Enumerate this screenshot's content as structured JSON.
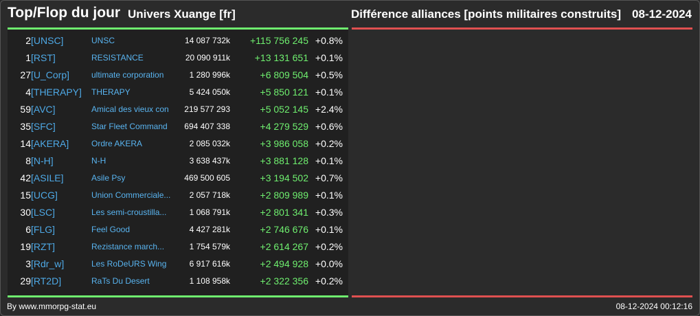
{
  "header": {
    "title": "Top/Flop du jour",
    "universe": "Univers Xuange [fr]",
    "subject": "Différence alliances [points militaires construits]",
    "date": "08-12-2024"
  },
  "colors": {
    "accent_top": "#6fef6f",
    "accent_flop": "#e05050",
    "tag": "#4ea9e6"
  },
  "rows": [
    {
      "rank": "2",
      "tag": "[UNSC]",
      "name": "UNSC",
      "points": "14 087 732k",
      "diff": "+115 756 245",
      "pct": "+0.8%"
    },
    {
      "rank": "1",
      "tag": "[RST]",
      "name": "RESISTANCE",
      "points": "20 090 911k",
      "diff": "+13 131 651",
      "pct": "+0.1%"
    },
    {
      "rank": "27",
      "tag": "[U_Corp]",
      "name": "ultimate corporation",
      "points": "1 280 996k",
      "diff": "+6 809 504",
      "pct": "+0.5%"
    },
    {
      "rank": "4",
      "tag": "[THERAPY]",
      "name": "THERAPY",
      "points": "5 424 050k",
      "diff": "+5 850 121",
      "pct": "+0.1%"
    },
    {
      "rank": "59",
      "tag": "[AVC]",
      "name": "Amical des vieux con",
      "points": "219 577 293",
      "diff": "+5 052 145",
      "pct": "+2.4%"
    },
    {
      "rank": "35",
      "tag": "[SFC]",
      "name": "Star Fleet Command",
      "points": "694 407 338",
      "diff": "+4 279 529",
      "pct": "+0.6%"
    },
    {
      "rank": "14",
      "tag": "[AKERA]",
      "name": "Ordre AKERA",
      "points": "2 085 032k",
      "diff": "+3 986 058",
      "pct": "+0.2%"
    },
    {
      "rank": "8",
      "tag": "[N-H]",
      "name": "N-H",
      "points": "3 638 437k",
      "diff": "+3 881 128",
      "pct": "+0.1%"
    },
    {
      "rank": "42",
      "tag": "[ASILE]",
      "name": "Asile Psy",
      "points": "469 500 605",
      "diff": "+3 194 502",
      "pct": "+0.7%"
    },
    {
      "rank": "15",
      "tag": "[UCG]",
      "name": "Union Commerciale...",
      "points": "2 057 718k",
      "diff": "+2 809 989",
      "pct": "+0.1%"
    },
    {
      "rank": "30",
      "tag": "[LSC]",
      "name": "Les semi-croustilla...",
      "points": "1 068 791k",
      "diff": "+2 801 341",
      "pct": "+0.3%"
    },
    {
      "rank": "6",
      "tag": "[FLG]",
      "name": "Feel Good",
      "points": "4 427 281k",
      "diff": "+2 746 676",
      "pct": "+0.1%"
    },
    {
      "rank": "19",
      "tag": "[RZT]",
      "name": "Rezistance march...",
      "points": "1 754 579k",
      "diff": "+2 614 267",
      "pct": "+0.2%"
    },
    {
      "rank": "3",
      "tag": "[Rdr_w]",
      "name": "Les RoDeURS Wing",
      "points": "6 917 616k",
      "diff": "+2 494 928",
      "pct": "+0.0%"
    },
    {
      "rank": "29",
      "tag": "[RT2D]",
      "name": "RaTs Du Desert",
      "points": "1 108 958k",
      "diff": "+2 322 356",
      "pct": "+0.2%"
    }
  ],
  "footer": {
    "source": "By www.mmorpg-stat.eu",
    "timestamp": "08-12-2024 00:12:16"
  }
}
